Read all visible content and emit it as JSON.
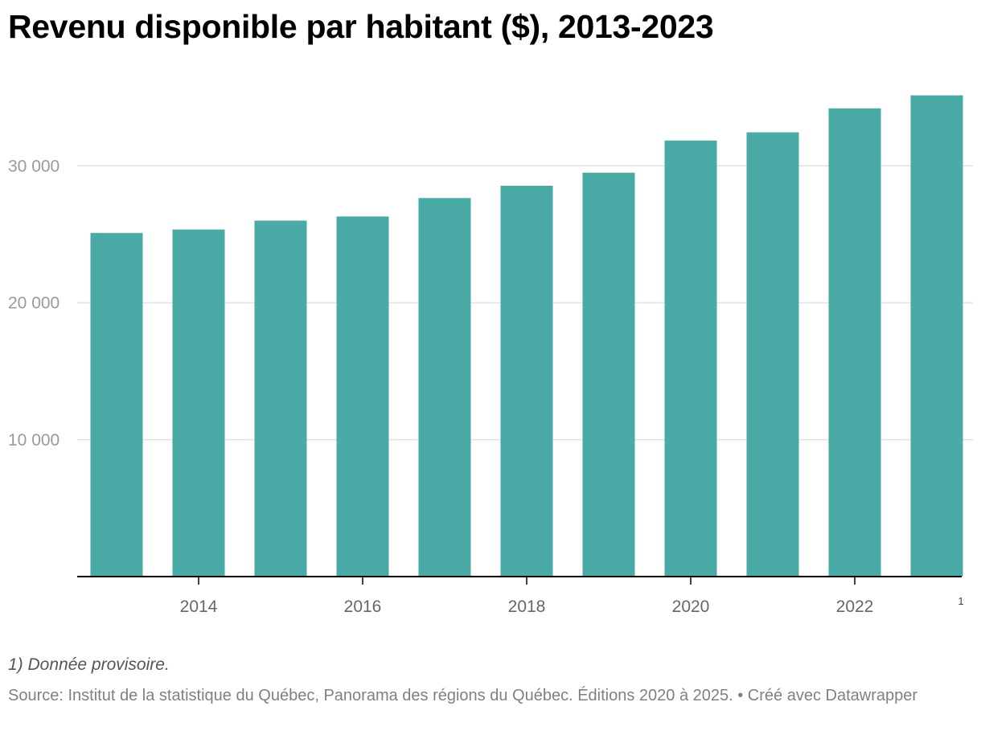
{
  "title": "Revenu disponible par habitant ($), 2013-2023",
  "note": "1) Donnée provisoire.",
  "source": "Source: Institut de la statistique du Québec, Panorama des régions du Québec. Éditions 2020 à 2025. • Créé avec Datawrapper",
  "colors": {
    "bar": "#49aaa6",
    "grid": "#e2e2e2",
    "axis": "#000000"
  },
  "chart_data": {
    "type": "bar",
    "title": "Revenu disponible par habitant ($), 2013-2023",
    "xlabel": "",
    "ylabel": "",
    "ylim": [
      0,
      35000
    ],
    "grid": true,
    "categories": [
      "2013",
      "2014",
      "2015",
      "2016",
      "2017",
      "2018",
      "2019",
      "2020",
      "2021",
      "2022",
      "2023"
    ],
    "values": [
      25100,
      25350,
      26000,
      26300,
      27650,
      28550,
      29500,
      31850,
      32450,
      34200,
      35150
    ],
    "x_tick_labels": [
      "2014",
      "2016",
      "2018",
      "2020",
      "2022"
    ],
    "y_ticks": [
      10000,
      20000,
      30000
    ],
    "y_tick_labels": [
      "10 000",
      "20 000",
      "30 000"
    ],
    "footnote_marker": {
      "category": "2023",
      "text": "1"
    }
  }
}
